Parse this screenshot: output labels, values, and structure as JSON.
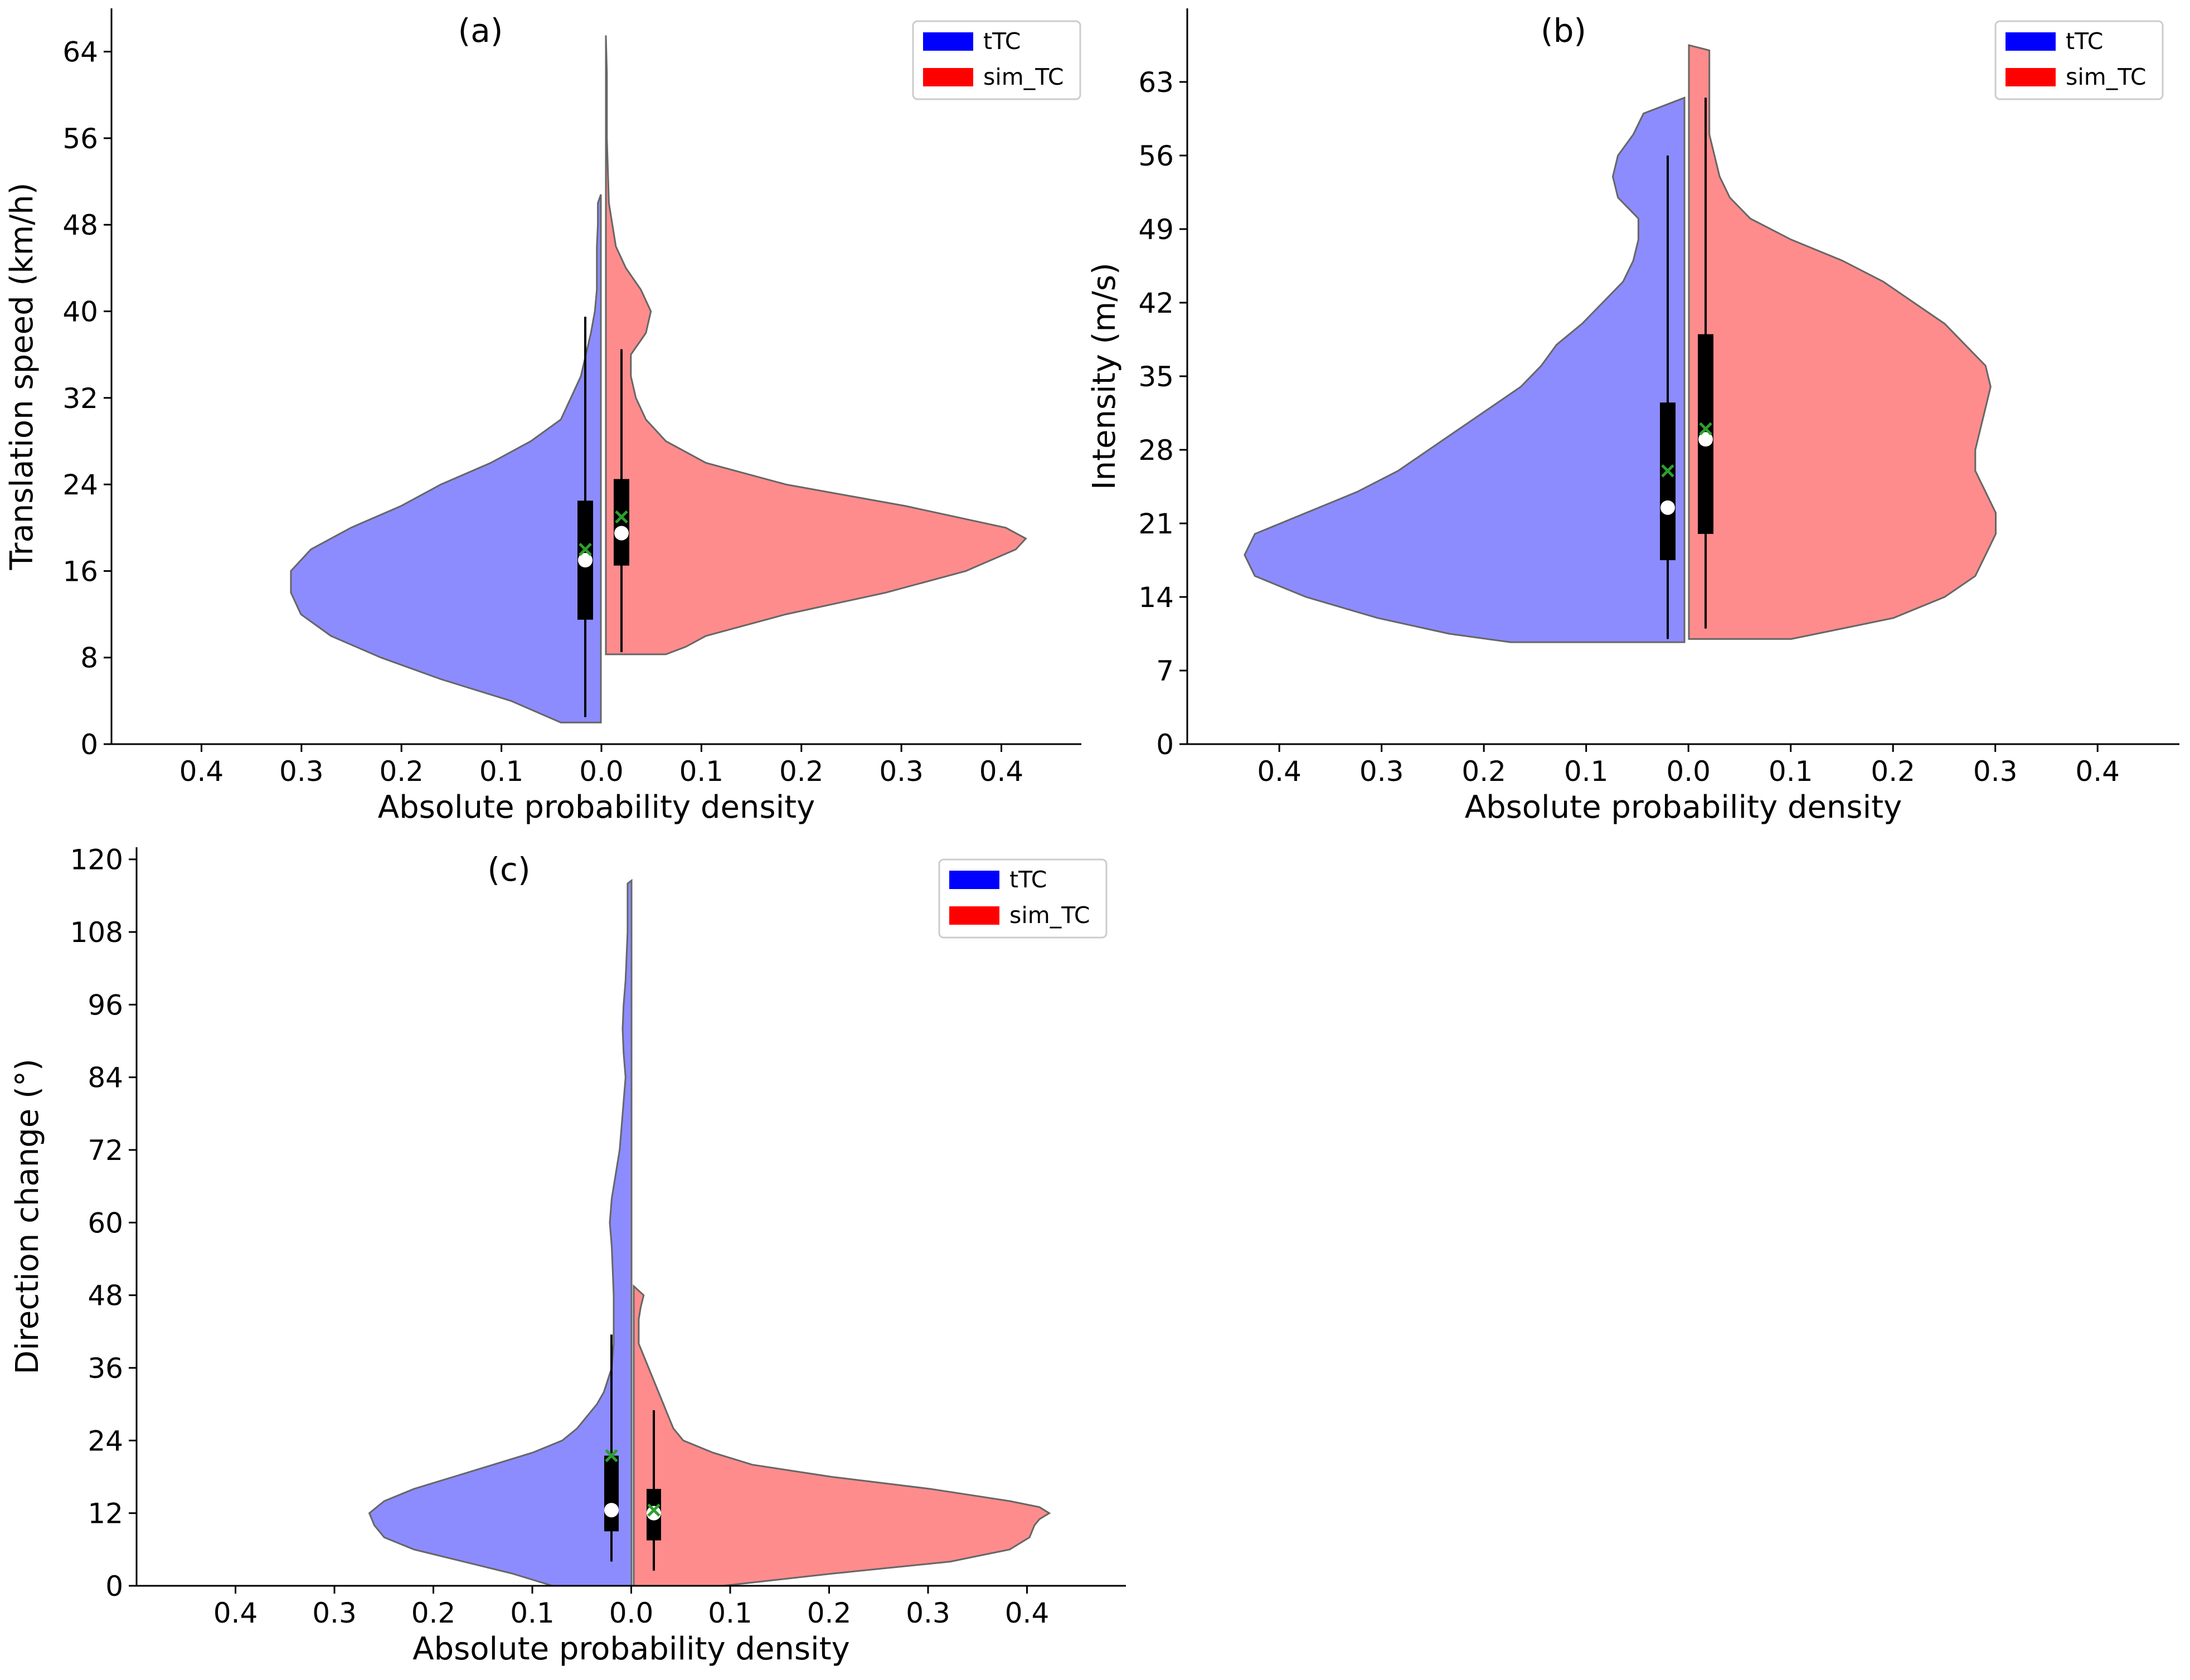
{
  "colors": {
    "ttc_fill": "#8c8cff",
    "simtc_fill": "#ff8c8c",
    "ttc_legend": "#0000ff",
    "simtc_legend": "#ff0000",
    "violin_edge": "#666666",
    "box": "#000000",
    "median": "#ffffff",
    "mean": "#2ca02c"
  },
  "chart_data": [
    {
      "panel": "(a)",
      "type": "violin",
      "xlabel": "Absolute probability density",
      "ylabel": "Translation speed (km/h)",
      "ylim": [
        0,
        68
      ],
      "yticks": [
        0,
        8,
        16,
        24,
        32,
        40,
        48,
        56,
        64
      ],
      "xlim": [
        -0.49,
        0.48
      ],
      "xticks": [
        -0.4,
        -0.3,
        -0.2,
        -0.1,
        0.0,
        0.1,
        0.2,
        0.3,
        0.4
      ],
      "xtick_labels": [
        "0.4",
        "0.3",
        "0.2",
        "0.1",
        "0.0",
        "0.1",
        "0.2",
        "0.3",
        "0.4"
      ],
      "legend": [
        "tTC",
        "sim_TC"
      ],
      "series": [
        {
          "name": "tTC",
          "side": "left",
          "density": [
            [
              2.0,
              0.04
            ],
            [
              4,
              0.09
            ],
            [
              6,
              0.16
            ],
            [
              8,
              0.22
            ],
            [
              10,
              0.27
            ],
            [
              12,
              0.3
            ],
            [
              14,
              0.31
            ],
            [
              16,
              0.31
            ],
            [
              18,
              0.29
            ],
            [
              20,
              0.25
            ],
            [
              22,
              0.2
            ],
            [
              24,
              0.16
            ],
            [
              26,
              0.11
            ],
            [
              28,
              0.07
            ],
            [
              30,
              0.04
            ],
            [
              32,
              0.03
            ],
            [
              34,
              0.02
            ],
            [
              36,
              0.015
            ],
            [
              38,
              0.01
            ],
            [
              40,
              0.006
            ],
            [
              42,
              0.004
            ],
            [
              44,
              0.004
            ],
            [
              46,
              0.004
            ],
            [
              48,
              0.003
            ],
            [
              50,
              0.003
            ],
            [
              50.8,
              0.0
            ]
          ],
          "box": {
            "q1": 11.5,
            "median": 17.0,
            "q3": 22.5,
            "whisker_low": 2.5,
            "whisker_high": 39.5,
            "mean": 18.0
          }
        },
        {
          "name": "sim_TC",
          "side": "right",
          "density": [
            [
              8.3,
              0.06
            ],
            [
              9,
              0.08
            ],
            [
              10,
              0.1
            ],
            [
              12,
              0.18
            ],
            [
              14,
              0.28
            ],
            [
              16,
              0.36
            ],
            [
              18,
              0.41
            ],
            [
              19,
              0.42
            ],
            [
              20,
              0.4
            ],
            [
              22,
              0.3
            ],
            [
              24,
              0.18
            ],
            [
              26,
              0.1
            ],
            [
              28,
              0.06
            ],
            [
              30,
              0.04
            ],
            [
              32,
              0.03
            ],
            [
              34,
              0.025
            ],
            [
              36,
              0.025
            ],
            [
              38,
              0.04
            ],
            [
              40,
              0.045
            ],
            [
              42,
              0.035
            ],
            [
              44,
              0.02
            ],
            [
              46,
              0.01
            ],
            [
              50,
              0.003
            ],
            [
              56,
              0.001
            ],
            [
              62,
              0.001
            ],
            [
              65.5,
              0.0
            ]
          ],
          "box": {
            "q1": 16.5,
            "median": 19.5,
            "q3": 24.5,
            "whisker_low": 8.5,
            "whisker_high": 36.5,
            "mean": 21.0
          }
        }
      ]
    },
    {
      "panel": "(b)",
      "type": "violin",
      "xlabel": "Absolute probability density",
      "ylabel": "Intensity (m/s)",
      "ylim": [
        0,
        70
      ],
      "yticks": [
        0,
        7,
        14,
        21,
        28,
        35,
        42,
        49,
        56,
        63
      ],
      "xlim": [
        -0.49,
        0.48
      ],
      "xticks": [
        -0.4,
        -0.3,
        -0.2,
        -0.1,
        0.0,
        0.1,
        0.2,
        0.3,
        0.4
      ],
      "xtick_labels": [
        "0.4",
        "0.3",
        "0.2",
        "0.1",
        "0.0",
        "0.1",
        "0.2",
        "0.3",
        "0.4"
      ],
      "legend": [
        "tTC",
        "sim_TC"
      ],
      "series": [
        {
          "name": "tTC",
          "side": "left",
          "density": [
            [
              9.7,
              0.17
            ],
            [
              10.5,
              0.23
            ],
            [
              12,
              0.3
            ],
            [
              14,
              0.37
            ],
            [
              16,
              0.42
            ],
            [
              18,
              0.43
            ],
            [
              20,
              0.42
            ],
            [
              22,
              0.37
            ],
            [
              24,
              0.32
            ],
            [
              26,
              0.28
            ],
            [
              28,
              0.25
            ],
            [
              30,
              0.22
            ],
            [
              32,
              0.19
            ],
            [
              34,
              0.16
            ],
            [
              36,
              0.14
            ],
            [
              38,
              0.125
            ],
            [
              40,
              0.1
            ],
            [
              42,
              0.08
            ],
            [
              44,
              0.06
            ],
            [
              46,
              0.05
            ],
            [
              48,
              0.045
            ],
            [
              50,
              0.045
            ],
            [
              52,
              0.065
            ],
            [
              54,
              0.07
            ],
            [
              56,
              0.065
            ],
            [
              58,
              0.05
            ],
            [
              60,
              0.04
            ],
            [
              61.5,
              0.0
            ]
          ],
          "box": {
            "q1": 17.5,
            "median": 22.5,
            "q3": 32.5,
            "whisker_low": 10.0,
            "whisker_high": 56.0,
            "mean": 26.0
          }
        },
        {
          "name": "sim_TC",
          "side": "right",
          "density": [
            [
              10.0,
              0.1
            ],
            [
              11,
              0.15
            ],
            [
              12,
              0.2
            ],
            [
              14,
              0.25
            ],
            [
              16,
              0.28
            ],
            [
              18,
              0.29
            ],
            [
              20,
              0.3
            ],
            [
              22,
              0.3
            ],
            [
              24,
              0.29
            ],
            [
              26,
              0.28
            ],
            [
              28,
              0.28
            ],
            [
              30,
              0.285
            ],
            [
              32,
              0.29
            ],
            [
              34,
              0.295
            ],
            [
              36,
              0.29
            ],
            [
              38,
              0.27
            ],
            [
              40,
              0.25
            ],
            [
              42,
              0.22
            ],
            [
              44,
              0.19
            ],
            [
              46,
              0.15
            ],
            [
              48,
              0.1
            ],
            [
              50,
              0.06
            ],
            [
              52,
              0.04
            ],
            [
              54,
              0.03
            ],
            [
              56,
              0.025
            ],
            [
              58,
              0.02
            ],
            [
              60,
              0.02
            ],
            [
              62,
              0.02
            ],
            [
              64,
              0.02
            ],
            [
              66,
              0.02
            ],
            [
              66.5,
              0.0
            ]
          ],
          "box": {
            "q1": 20.0,
            "median": 29.0,
            "q3": 39.0,
            "whisker_low": 11.0,
            "whisker_high": 61.5,
            "mean": 30.0
          }
        }
      ]
    },
    {
      "panel": "(c)",
      "type": "violin",
      "xlabel": "Absolute probability density",
      "ylabel": "Direction change (°)",
      "ylim": [
        0,
        122
      ],
      "yticks": [
        0,
        12,
        24,
        36,
        48,
        60,
        72,
        84,
        96,
        108,
        120
      ],
      "xlim": [
        -0.5,
        0.5
      ],
      "xticks": [
        -0.4,
        -0.3,
        -0.2,
        -0.1,
        0.0,
        0.1,
        0.2,
        0.3,
        0.4
      ],
      "xtick_labels": [
        "0.4",
        "0.3",
        "0.2",
        "0.1",
        "0.0",
        "0.1",
        "0.2",
        "0.3",
        "0.4"
      ],
      "legend": [
        "tTC",
        "sim_TC"
      ],
      "series": [
        {
          "name": "tTC",
          "side": "left",
          "density": [
            [
              0.0,
              0.08
            ],
            [
              2,
              0.12
            ],
            [
              4,
              0.17
            ],
            [
              6,
              0.22
            ],
            [
              8,
              0.25
            ],
            [
              10,
              0.26
            ],
            [
              12,
              0.265
            ],
            [
              14,
              0.25
            ],
            [
              16,
              0.22
            ],
            [
              18,
              0.18
            ],
            [
              20,
              0.14
            ],
            [
              22,
              0.1
            ],
            [
              24,
              0.07
            ],
            [
              26,
              0.055
            ],
            [
              28,
              0.045
            ],
            [
              30,
              0.035
            ],
            [
              32,
              0.028
            ],
            [
              34,
              0.024
            ],
            [
              36,
              0.02
            ],
            [
              40,
              0.018
            ],
            [
              44,
              0.018
            ],
            [
              48,
              0.018
            ],
            [
              52,
              0.019
            ],
            [
              56,
              0.02
            ],
            [
              60,
              0.022
            ],
            [
              64,
              0.02
            ],
            [
              68,
              0.016
            ],
            [
              72,
              0.012
            ],
            [
              76,
              0.01
            ],
            [
              80,
              0.008
            ],
            [
              84,
              0.006
            ],
            [
              88,
              0.008
            ],
            [
              92,
              0.009
            ],
            [
              96,
              0.008
            ],
            [
              100,
              0.006
            ],
            [
              104,
              0.005
            ],
            [
              108,
              0.004
            ],
            [
              112,
              0.004
            ],
            [
              116,
              0.004
            ],
            [
              116.5,
              0.0
            ]
          ],
          "box": {
            "q1": 9.0,
            "median": 12.5,
            "q3": 21.5,
            "whisker_low": 4.0,
            "whisker_high": 41.5,
            "mean": 21.5
          }
        },
        {
          "name": "sim_TC",
          "side": "right",
          "density": [
            [
              0.0,
              0.09
            ],
            [
              2,
              0.2
            ],
            [
              4,
              0.32
            ],
            [
              6,
              0.38
            ],
            [
              8,
              0.4
            ],
            [
              10,
              0.405
            ],
            [
              11,
              0.41
            ],
            [
              12,
              0.42
            ],
            [
              13,
              0.41
            ],
            [
              14,
              0.38
            ],
            [
              16,
              0.3
            ],
            [
              18,
              0.2
            ],
            [
              20,
              0.12
            ],
            [
              22,
              0.08
            ],
            [
              24,
              0.05
            ],
            [
              26,
              0.04
            ],
            [
              28,
              0.035
            ],
            [
              30,
              0.03
            ],
            [
              32,
              0.025
            ],
            [
              34,
              0.02
            ],
            [
              36,
              0.015
            ],
            [
              38,
              0.01
            ],
            [
              40,
              0.005
            ],
            [
              42,
              0.005
            ],
            [
              44,
              0.005
            ],
            [
              46,
              0.007
            ],
            [
              48,
              0.01
            ],
            [
              49.5,
              0.0
            ]
          ],
          "box": {
            "q1": 7.5,
            "median": 12.0,
            "q3": 16.0,
            "whisker_low": 2.5,
            "whisker_high": 29.0,
            "mean": 12.5
          }
        }
      ]
    }
  ]
}
